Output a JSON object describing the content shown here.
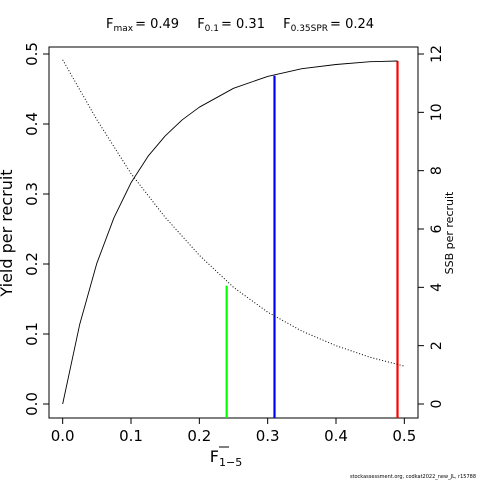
{
  "chart_data": {
    "type": "line",
    "title": {
      "fmax": {
        "main": "F",
        "sub": "max",
        "value": "= 0.49"
      },
      "f01": {
        "main": "F",
        "sub": "0.1",
        "value": "= 0.31"
      },
      "f035": {
        "main": "F",
        "sub": "0.35SPR",
        "value": "= 0.24"
      }
    },
    "xlabel": {
      "main": "F",
      "sub": "1−5"
    },
    "ylabel": "Yield per recruit",
    "y2label": "SSB per recruit",
    "xlim": [
      -0.02,
      0.52
    ],
    "ylim": [
      -0.02,
      0.51
    ],
    "y2lim": [
      -0.48,
      12.24
    ],
    "xticks": [
      "0.0",
      "0.1",
      "0.2",
      "0.3",
      "0.4",
      "0.5"
    ],
    "yticks": [
      "0.0",
      "0.1",
      "0.2",
      "0.3",
      "0.4",
      "0.5"
    ],
    "y2ticks": [
      "0",
      "2",
      "4",
      "6",
      "8",
      "10",
      "12"
    ],
    "grid": false,
    "series": [
      {
        "style": "solid",
        "axis": "left",
        "x": [
          0.0,
          0.025,
          0.05,
          0.075,
          0.1,
          0.125,
          0.15,
          0.175,
          0.2,
          0.25,
          0.3,
          0.35,
          0.4,
          0.45,
          0.49
        ],
        "y": [
          0.0,
          0.114,
          0.201,
          0.266,
          0.316,
          0.354,
          0.383,
          0.406,
          0.424,
          0.451,
          0.468,
          0.479,
          0.485,
          0.489,
          0.49
        ]
      },
      {
        "style": "dotted",
        "axis": "right",
        "x": [
          0.0,
          0.05,
          0.1,
          0.15,
          0.2,
          0.25,
          0.3,
          0.35,
          0.4,
          0.45,
          0.5
        ],
        "y": [
          11.8,
          9.75,
          7.9,
          6.4,
          5.1,
          4.0,
          3.15,
          2.5,
          2.0,
          1.6,
          1.3
        ]
      }
    ],
    "reference_lines": [
      {
        "name": "F0.35SPR",
        "x": 0.24,
        "y_top": 0.169,
        "color": "#00ff00"
      },
      {
        "name": "F0.1",
        "x": 0.31,
        "y_top": 0.469,
        "color": "#0000ff"
      },
      {
        "name": "Fmax",
        "x": 0.49,
        "y_top": 0.49,
        "color": "#ff0000"
      }
    ]
  },
  "credit": "stockassessment.org, codkat2022_new_JL, r15788"
}
